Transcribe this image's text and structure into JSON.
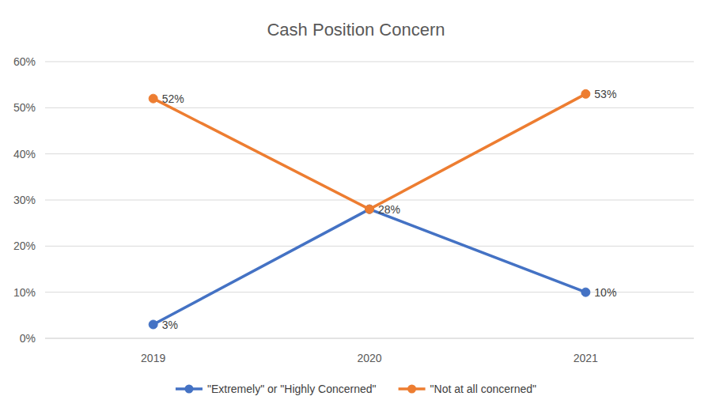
{
  "chart_data": {
    "type": "line",
    "title": "Cash Position Concern",
    "categories": [
      "2019",
      "2020",
      "2021"
    ],
    "series": [
      {
        "name": "\"Extremely\" or \"Highly Concerned\"",
        "color": "#4472c4",
        "marker": "circle",
        "line_style": "solid",
        "values": [
          3,
          28,
          10
        ],
        "value_labels": [
          "3%",
          null,
          "10%"
        ]
      },
      {
        "name": "\"Not at all concerned\"",
        "color": "#ed7d31",
        "marker": "circle",
        "line_style": "solid",
        "values": [
          52,
          28,
          53
        ],
        "value_labels": [
          "52%",
          "28%",
          "53%"
        ]
      }
    ],
    "ylim": [
      0,
      60
    ],
    "yticks": [
      {
        "value": 0,
        "label": "0%"
      },
      {
        "value": 10,
        "label": "10%"
      },
      {
        "value": 20,
        "label": "20%"
      },
      {
        "value": 30,
        "label": "30%"
      },
      {
        "value": 40,
        "label": "40%"
      },
      {
        "value": 50,
        "label": "50%"
      },
      {
        "value": 60,
        "label": "60%"
      }
    ],
    "grid": true,
    "legend": "bottom",
    "data_labels": true
  }
}
